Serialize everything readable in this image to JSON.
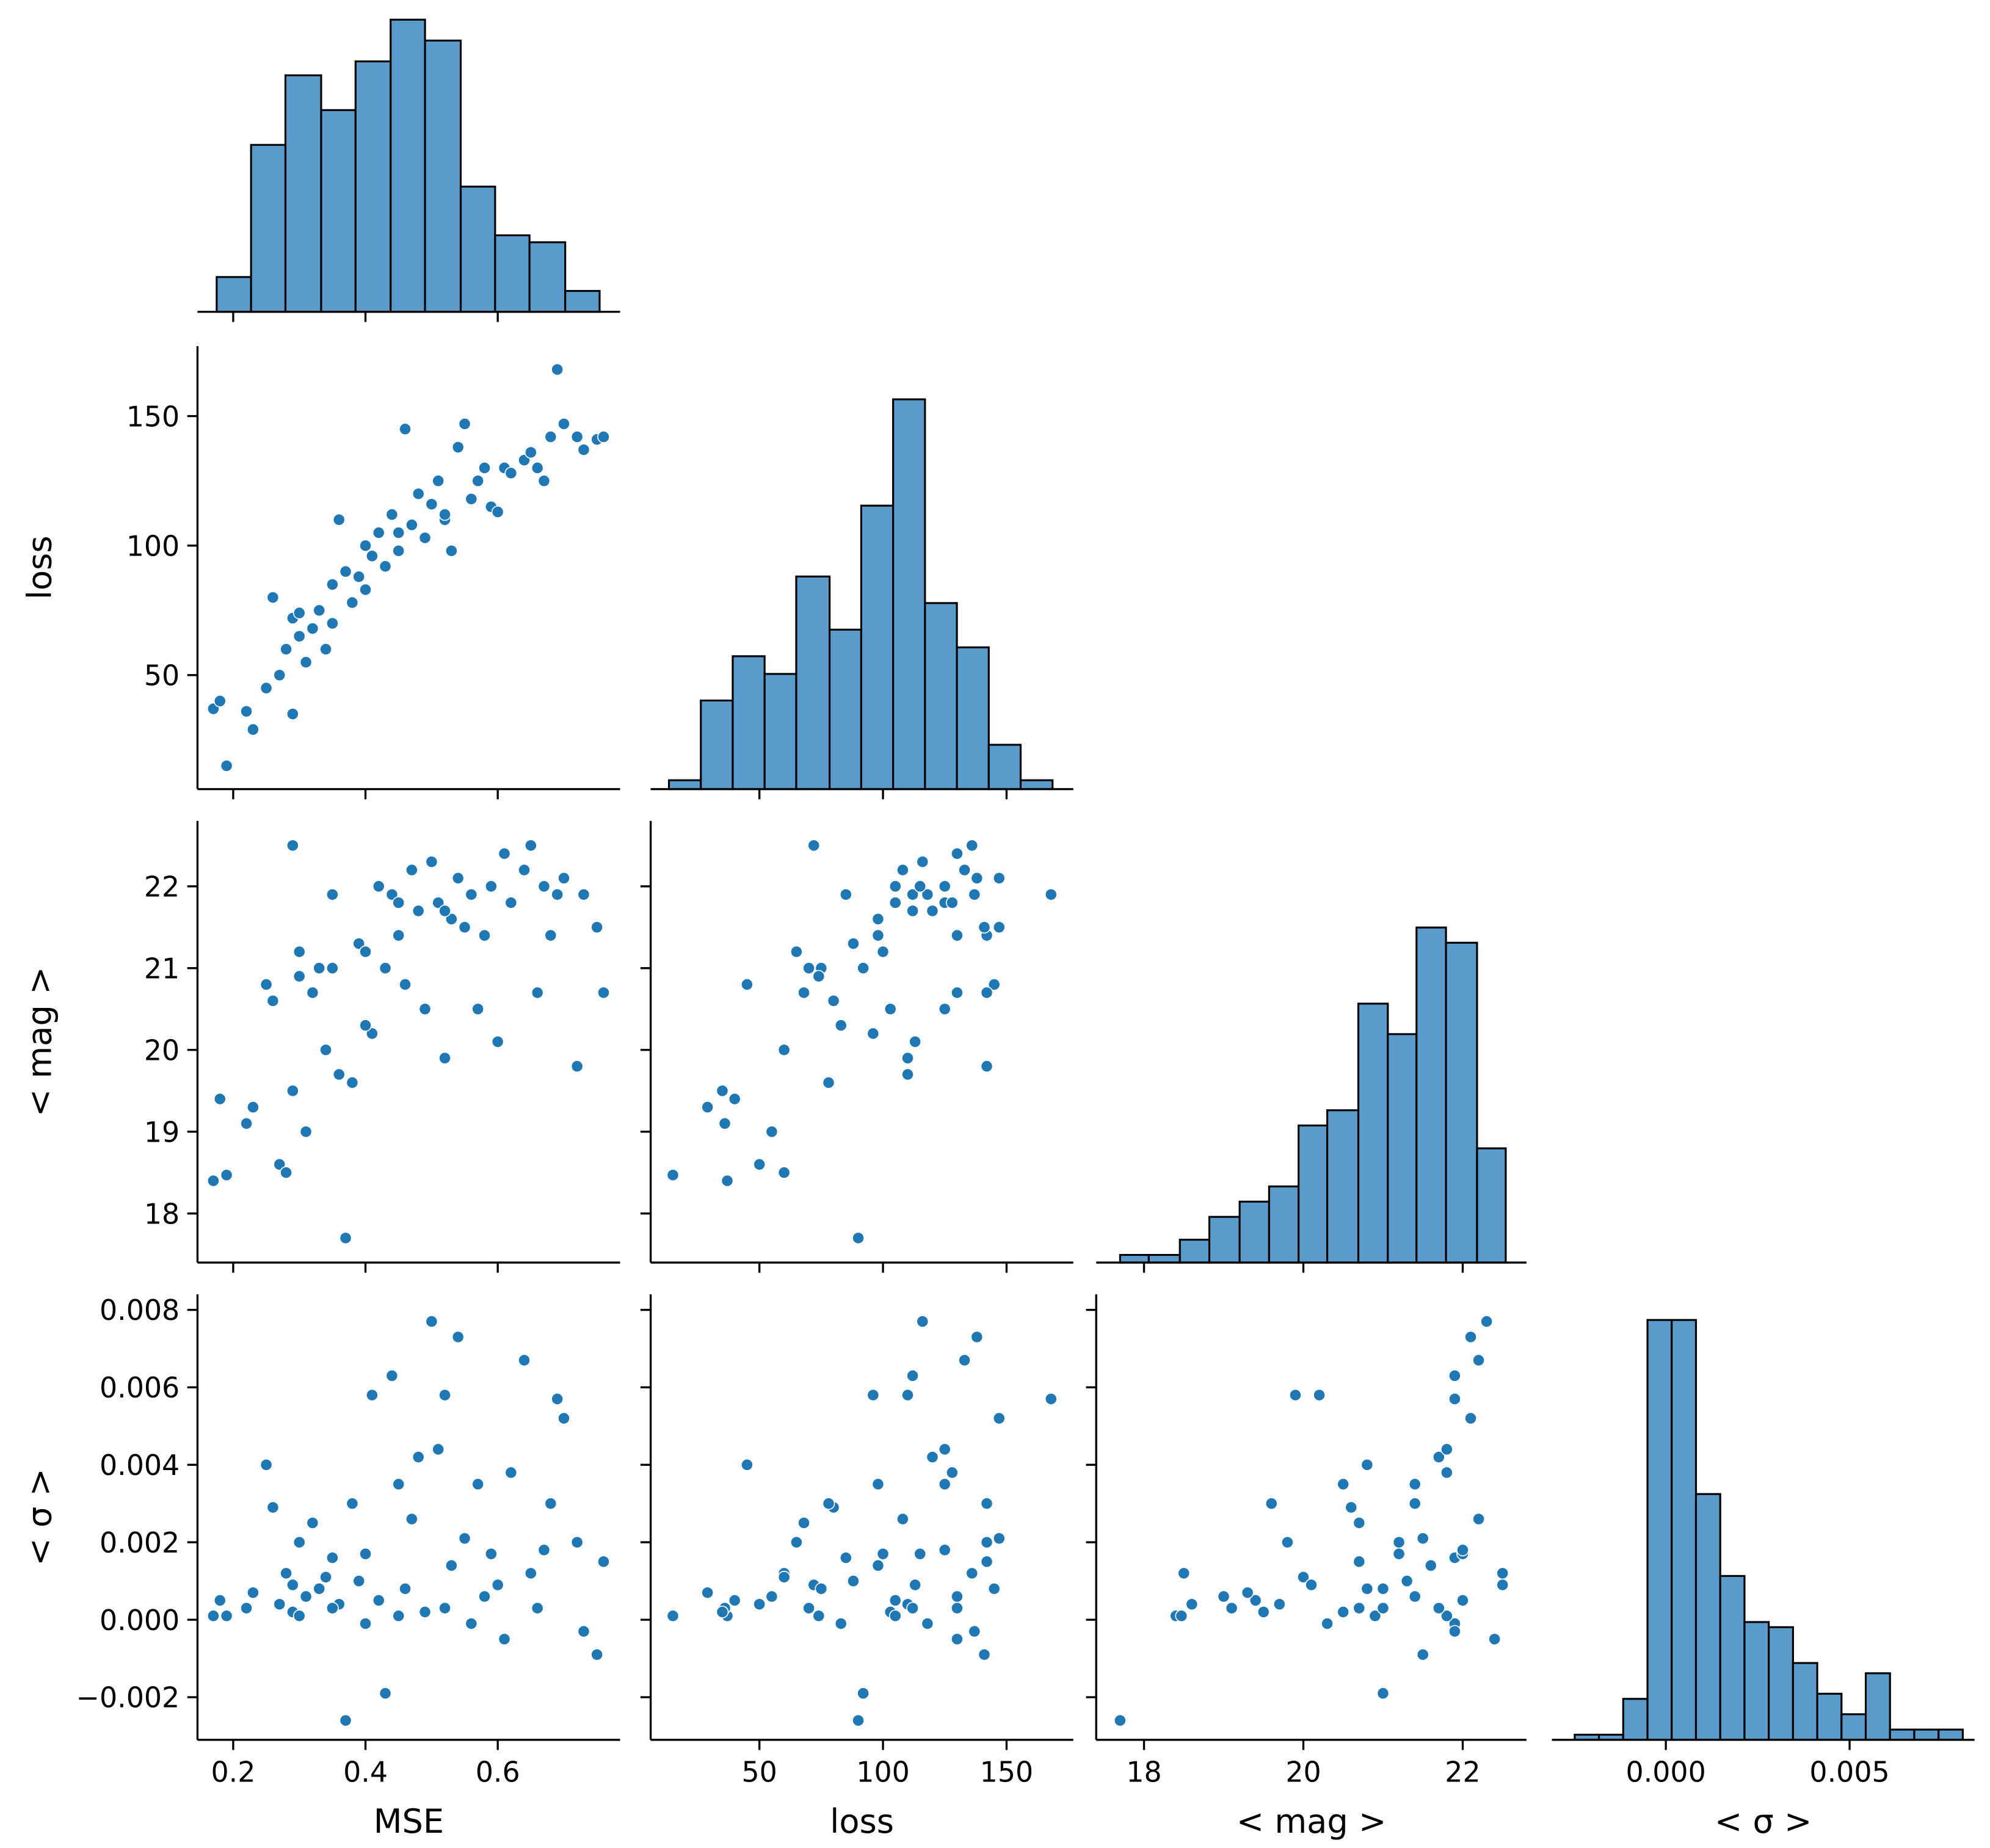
{
  "chart_data": {
    "type": "pairplot",
    "variables": [
      {
        "label": "MSE",
        "lim": [
          0.146,
          0.785
        ],
        "xticks": [
          0.2,
          0.4,
          0.6
        ],
        "yticks": [],
        "hist": {
          "bins": [
            0.175,
            0.227,
            0.279,
            0.333,
            0.385,
            0.438,
            0.49,
            0.544,
            0.596,
            0.648,
            0.702,
            0.754
          ],
          "counts": [
            5,
            24,
            34,
            29,
            36,
            42,
            39,
            18,
            11,
            10,
            3
          ],
          "ylim": [
            0,
            43
          ]
        },
        "values": [
          0.17,
          0.19,
          0.18,
          0.22,
          0.23,
          0.25,
          0.26,
          0.27,
          0.28,
          0.29,
          0.29,
          0.3,
          0.31,
          0.32,
          0.33,
          0.34,
          0.35,
          0.36,
          0.37,
          0.38,
          0.39,
          0.4,
          0.41,
          0.42,
          0.43,
          0.44,
          0.45,
          0.46,
          0.47,
          0.48,
          0.49,
          0.5,
          0.51,
          0.52,
          0.53,
          0.54,
          0.55,
          0.56,
          0.57,
          0.58,
          0.59,
          0.6,
          0.61,
          0.62,
          0.64,
          0.65,
          0.66,
          0.67,
          0.68,
          0.69,
          0.7,
          0.72,
          0.73,
          0.75,
          0.76,
          0.3,
          0.35,
          0.45,
          0.52,
          0.4
        ]
      },
      {
        "label": "loss",
        "lim": [
          6,
          177
        ],
        "xticks": [
          50,
          100,
          150
        ],
        "yticks": [
          50,
          100,
          150
        ],
        "hist": {
          "bins": [
            13.4,
            26.3,
            39.2,
            52.1,
            64.9,
            78.4,
            91.2,
            104.1,
            117.0,
            129.9,
            142.8,
            155.7,
            168.6
          ],
          "counts": [
            1,
            10,
            15,
            13,
            24,
            18,
            32,
            44,
            21,
            16,
            5,
            1
          ],
          "ylim": [
            0,
            50
          ]
        },
        "values": [
          37,
          15,
          40,
          36,
          29,
          45,
          80,
          50,
          60,
          35,
          72,
          65,
          55,
          68,
          75,
          60,
          85,
          110,
          90,
          78,
          88,
          100,
          96,
          105,
          92,
          112,
          98,
          145,
          108,
          120,
          103,
          116,
          125,
          110,
          98,
          138,
          147,
          118,
          125,
          130,
          115,
          113,
          130,
          128,
          133,
          136,
          130,
          125,
          142,
          168,
          147,
          142,
          137,
          141,
          142,
          74,
          70,
          105,
          112,
          83
        ]
      },
      {
        "label": "< mag >",
        "lim": [
          17.4,
          22.8
        ],
        "xticks": [
          18,
          20,
          22
        ],
        "yticks": [
          18,
          19,
          20,
          21,
          22
        ],
        "hist": {
          "bins": [
            17.7,
            18.06,
            18.45,
            18.82,
            19.2,
            19.57,
            19.94,
            20.3,
            20.69,
            21.06,
            21.42,
            21.79,
            22.18,
            22.54
          ],
          "counts": [
            1,
            1,
            3,
            6,
            8,
            10,
            18,
            20,
            34,
            30,
            44,
            42,
            15
          ],
          "ylim": [
            0,
            58
          ]
        },
        "values": [
          18.4,
          18.47,
          19.4,
          19.1,
          19.3,
          20.8,
          20.6,
          18.6,
          18.5,
          19.5,
          22.5,
          21.2,
          19.0,
          20.7,
          21.0,
          20.0,
          21.9,
          19.7,
          17.7,
          19.6,
          21.3,
          21.2,
          20.2,
          22.0,
          21.0,
          21.9,
          21.4,
          20.8,
          22.2,
          21.7,
          20.5,
          22.3,
          21.8,
          19.9,
          21.6,
          22.1,
          21.5,
          21.9,
          20.5,
          21.4,
          22.0,
          20.1,
          22.4,
          21.8,
          22.2,
          22.5,
          20.7,
          22.0,
          21.4,
          21.9,
          22.1,
          19.8,
          21.9,
          21.5,
          20.7,
          20.9,
          21.0,
          21.8,
          21.7,
          20.3
        ]
      },
      {
        "label": "< σ >",
        "lim": [
          -0.0031,
          0.0084
        ],
        "xticks": [
          {
            "value": 0,
            "label": "0.000"
          },
          {
            "value": 0.005,
            "label": "0.005"
          }
        ],
        "yticks": [
          {
            "value": -0.002,
            "label": "−0.002"
          },
          {
            "value": 0,
            "label": "0.000"
          },
          {
            "value": 0.002,
            "label": "0.002"
          },
          {
            "value": 0.004,
            "label": "0.004"
          },
          {
            "value": 0.006,
            "label": "0.006"
          },
          {
            "value": 0.008,
            "label": "0.008"
          }
        ],
        "hist": {
          "bins": [
            -0.00248,
            -0.00182,
            -0.00116,
            -0.0005,
            0.00016,
            0.00082,
            0.00148,
            0.00214,
            0.0028,
            0.00346,
            0.00412,
            0.00478,
            0.00544,
            0.0061,
            0.00676,
            0.00742,
            0.00808
          ],
          "counts": [
            1,
            1,
            8,
            82,
            82,
            48,
            32,
            23,
            22,
            15,
            9,
            5,
            13,
            2,
            2,
            2
          ],
          "ylim": [
            0,
            87
          ]
        },
        "values": [
          0.0001,
          0.0001,
          0.0005,
          0.0003,
          0.0007,
          0.004,
          0.0029,
          0.0004,
          0.0012,
          0.0002,
          0.0009,
          0.002,
          0.0006,
          0.0025,
          0.0008,
          0.0011,
          0.0016,
          0.0004,
          -0.0026,
          0.003,
          0.001,
          0.0017,
          0.0058,
          0.0005,
          -0.0019,
          0.0063,
          0.0035,
          0.0008,
          0.0026,
          0.0042,
          0.0002,
          0.0077,
          0.0044,
          0.0058,
          0.0014,
          0.0073,
          0.0021,
          -0.0001,
          0.0035,
          0.0006,
          0.0017,
          0.0009,
          -0.0005,
          0.0038,
          0.0067,
          0.0012,
          0.0003,
          0.0018,
          0.003,
          0.0057,
          0.0052,
          0.002,
          -0.0003,
          -0.0009,
          0.0015,
          0.0001,
          0.0003,
          0.0001,
          0.0003,
          -0.0001
        ]
      }
    ],
    "bar_color": "#5b9bcb",
    "point_color": "#1f77b4"
  }
}
